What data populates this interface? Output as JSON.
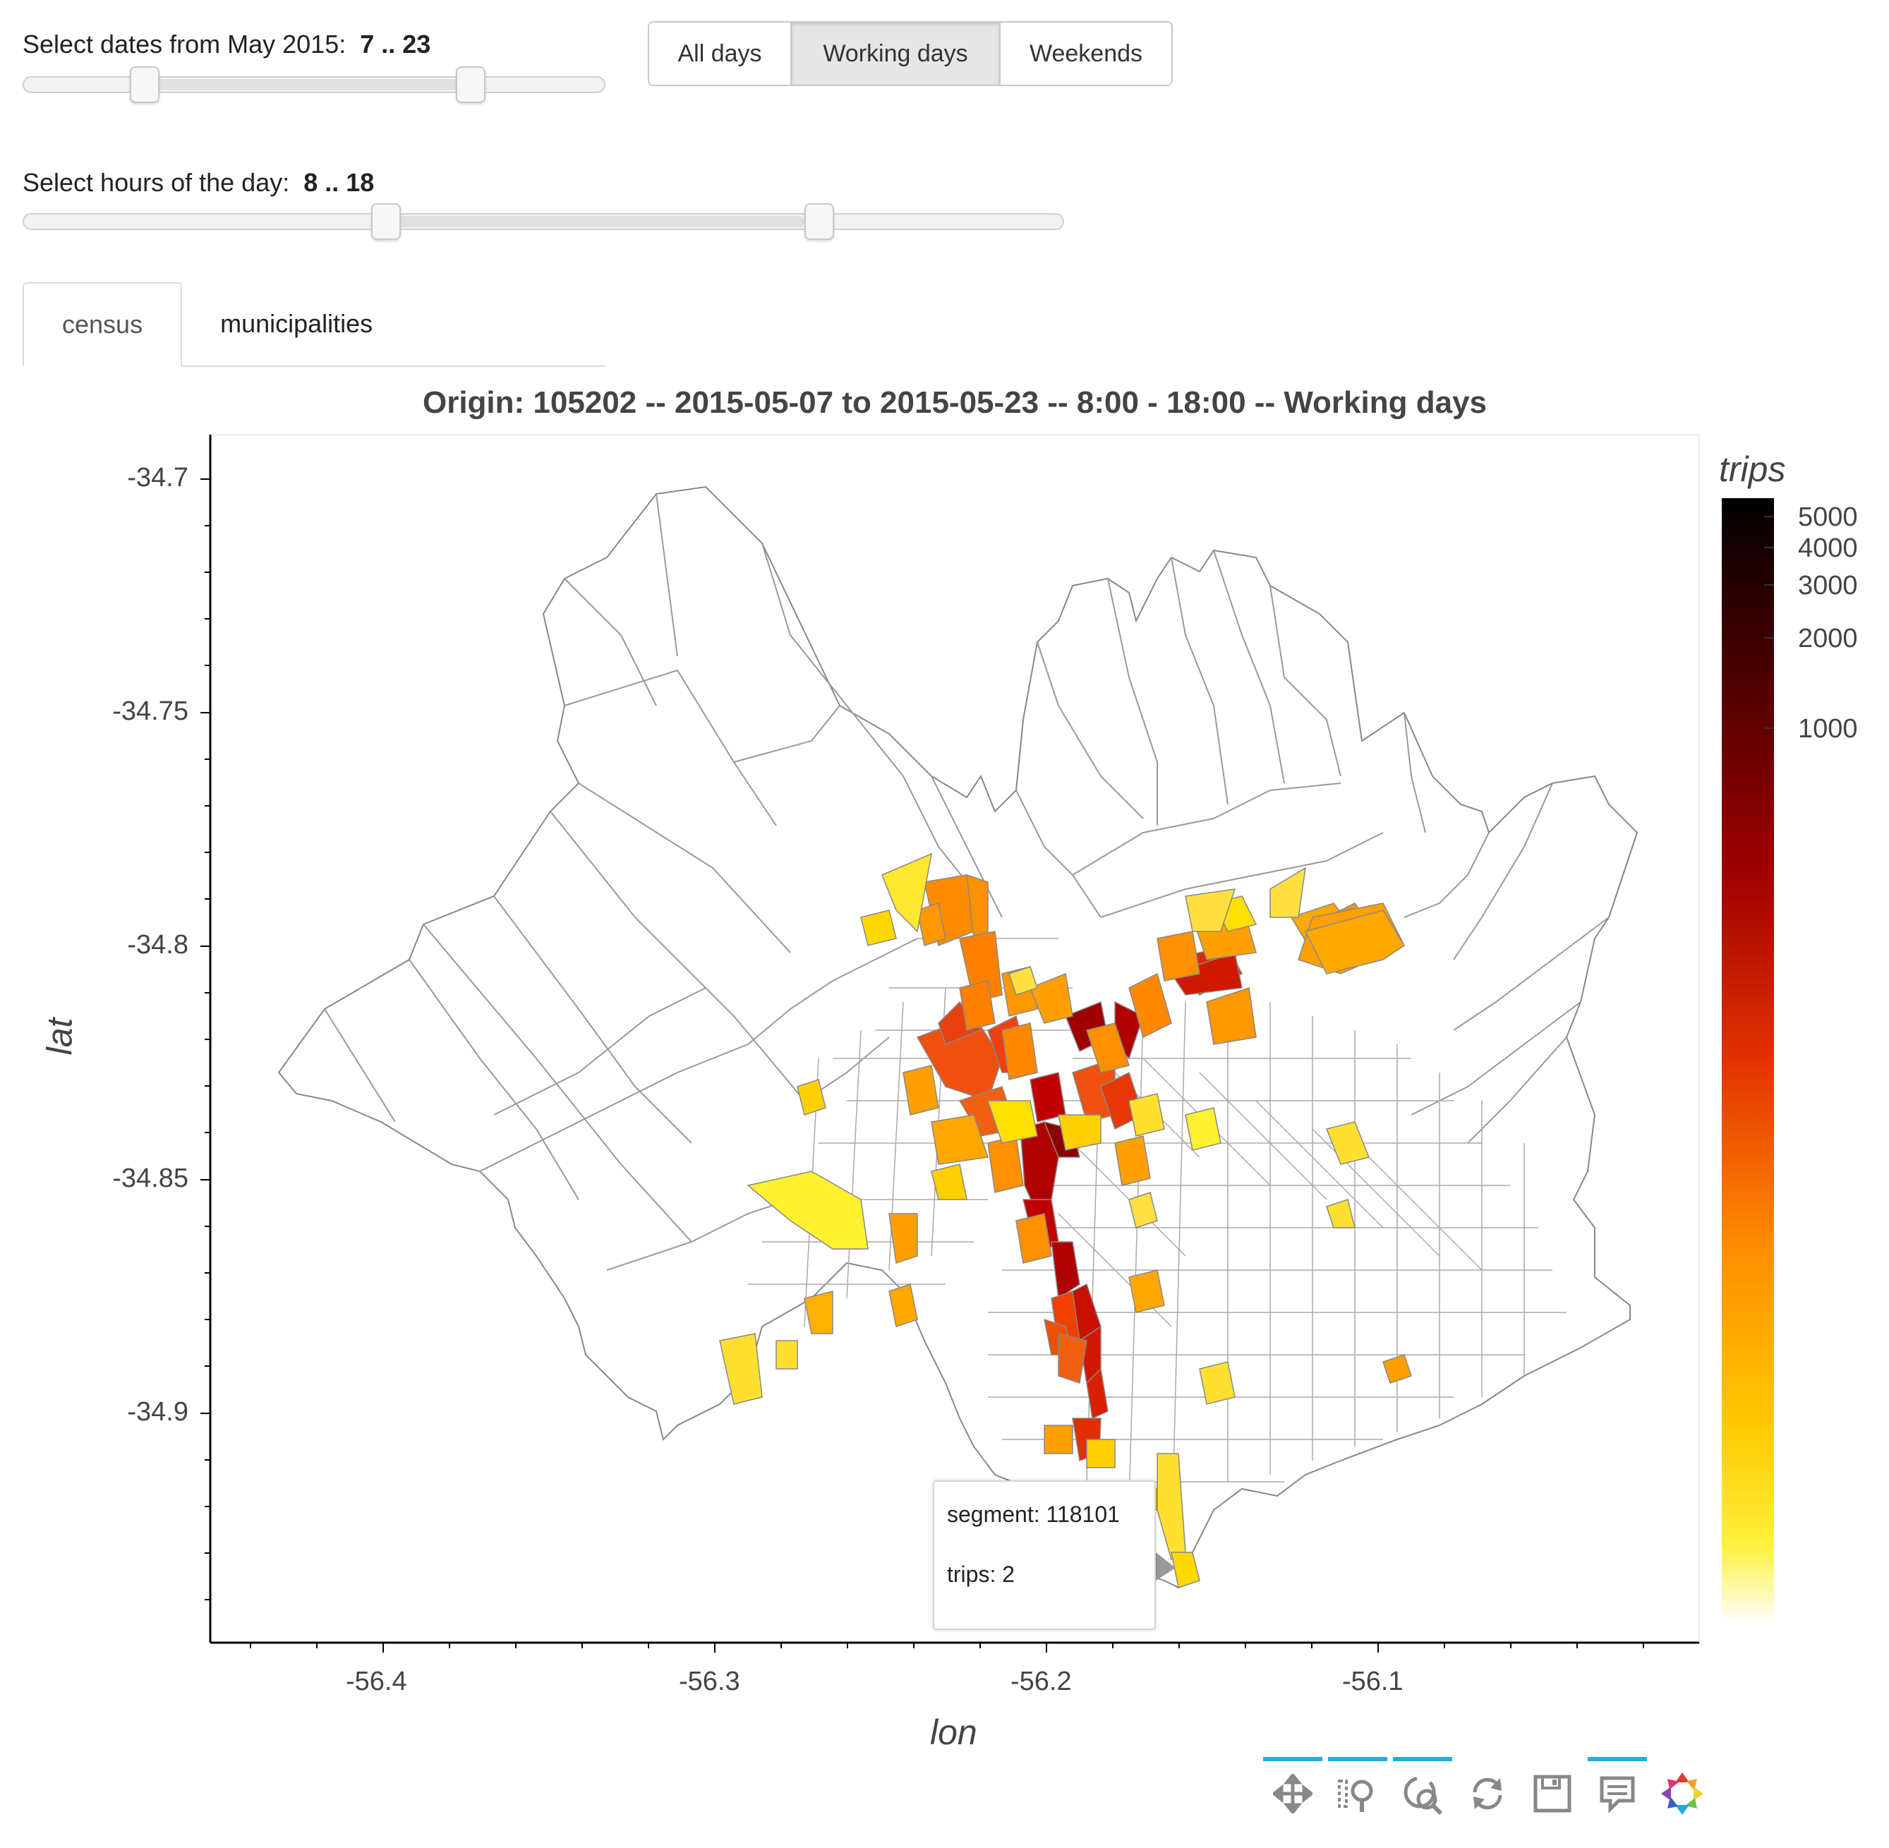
{
  "controls": {
    "date_slider": {
      "label_prefix": "Select dates from May 2015:",
      "value_text": "7 .. 23",
      "start": 7,
      "end": 23
    },
    "day_type_buttons": [
      {
        "label": "All days",
        "active": false
      },
      {
        "label": "Working days",
        "active": true
      },
      {
        "label": "Weekends",
        "active": false
      }
    ],
    "hour_slider": {
      "label_prefix": "Select hours of the day:",
      "value_text": "8 .. 18",
      "start": 8,
      "end": 18
    },
    "tabs": [
      {
        "label": "census",
        "active": true
      },
      {
        "label": "municipalities",
        "active": false
      }
    ]
  },
  "map": {
    "title": "Origin: 105202 -- 2015-05-07 to 2015-05-23 -- 8:00 - 18:00 -- Working days",
    "xlabel": "lon",
    "ylabel": "lat",
    "x_ticks": [
      "-56.4",
      "-56.3",
      "-56.2",
      "-56.1"
    ],
    "y_ticks": [
      "-34.7",
      "-34.75",
      "-34.8",
      "-34.85",
      "-34.9"
    ],
    "xlim": [
      -56.45,
      -55.99
    ],
    "ylim": [
      -34.95,
      -34.69
    ]
  },
  "colorbar": {
    "title": "trips",
    "ticks": [
      "5000",
      "4000",
      "3000",
      "2000",
      "1000"
    ],
    "colors": [
      "#000000",
      "#4a0000",
      "#a00000",
      "#e03000",
      "#ff8c00",
      "#ffd000",
      "#fff040",
      "#ffffff"
    ]
  },
  "tooltip": {
    "segment_text": "segment: 118101",
    "trips_text": "trips: 2"
  },
  "toolbar": {
    "tools": [
      {
        "icon": "pan-icon",
        "active": true
      },
      {
        "icon": "box-zoom-icon",
        "active": true
      },
      {
        "icon": "wheel-zoom-icon",
        "active": true
      },
      {
        "icon": "reset-icon",
        "active": false
      },
      {
        "icon": "save-icon",
        "active": false
      },
      {
        "icon": "hover-icon",
        "active": true
      },
      {
        "icon": "bokeh-logo-icon",
        "active": false
      }
    ]
  }
}
